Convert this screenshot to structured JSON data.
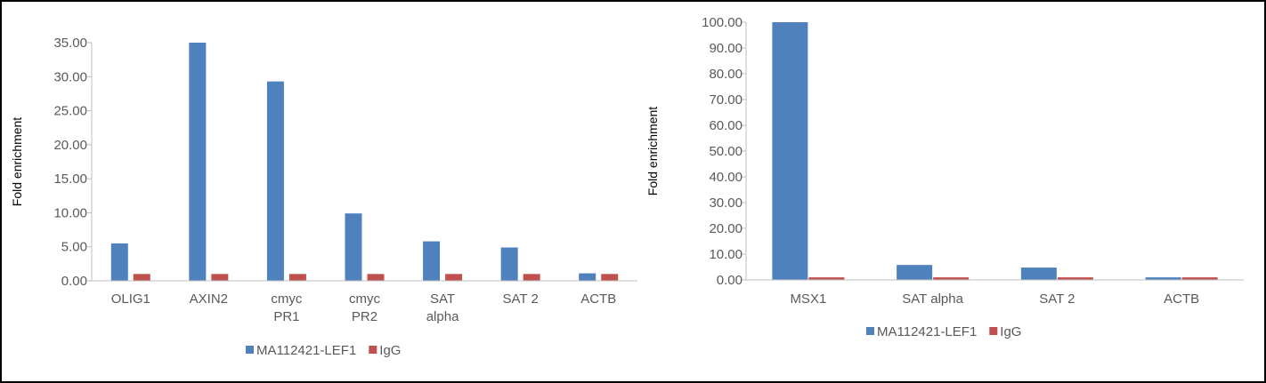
{
  "chart_data": [
    {
      "type": "bar",
      "title": "",
      "xlabel": "",
      "ylabel": "Fold enrichment",
      "ylim": [
        0,
        35
      ],
      "yticks": [
        "0.00",
        "5.00",
        "10.00",
        "15.00",
        "20.00",
        "25.00",
        "30.00",
        "35.00"
      ],
      "categories": [
        [
          "OLIG1"
        ],
        [
          "AXIN2"
        ],
        [
          "cmyc",
          "PR1"
        ],
        [
          "cmyc",
          "PR2"
        ],
        [
          "SAT",
          "alpha"
        ],
        [
          "SAT 2"
        ],
        [
          "ACTB"
        ]
      ],
      "series": [
        {
          "name": "MA112421-LEF1",
          "color": "#4f81bd",
          "values": [
            5.5,
            35.0,
            29.3,
            9.9,
            5.8,
            4.9,
            1.1
          ]
        },
        {
          "name": "IgG",
          "color": "#c0504d",
          "values": [
            1.0,
            1.0,
            1.0,
            1.0,
            1.0,
            1.0,
            1.0
          ]
        }
      ],
      "grid": false,
      "legend": "bottom"
    },
    {
      "type": "bar",
      "title": "",
      "xlabel": "",
      "ylabel": "Fold enrichment",
      "ylim": [
        0,
        100
      ],
      "yticks": [
        "0.00",
        "10.00",
        "20.00",
        "30.00",
        "40.00",
        "50.00",
        "60.00",
        "70.00",
        "80.00",
        "90.00",
        "100.00"
      ],
      "categories": [
        [
          "MSX1"
        ],
        [
          "SAT alpha"
        ],
        [
          "SAT 2"
        ],
        [
          "ACTB"
        ]
      ],
      "series": [
        {
          "name": "MA112421-LEF1",
          "color": "#4f81bd",
          "values": [
            100.0,
            5.8,
            4.8,
            1.0
          ]
        },
        {
          "name": "IgG",
          "color": "#c0504d",
          "values": [
            1.0,
            1.0,
            1.0,
            1.0
          ]
        }
      ],
      "grid": false,
      "legend": "bottom"
    }
  ]
}
